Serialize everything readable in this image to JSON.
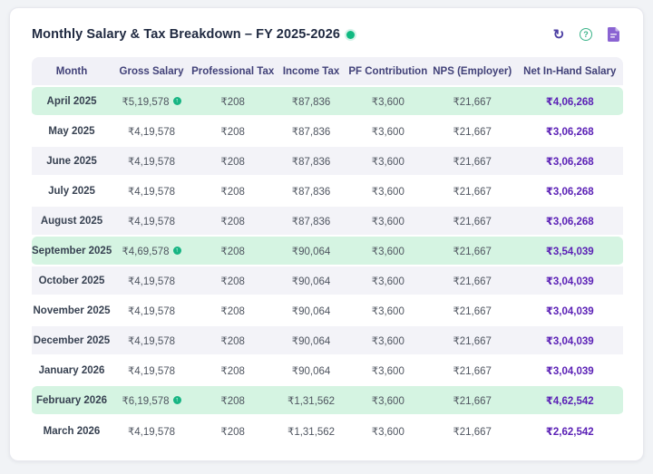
{
  "card": {
    "title": "Monthly Salary & Tax Breakdown – FY 2025-2026",
    "toolbar": {
      "refresh_glyph": "↻",
      "help_glyph": "?"
    }
  },
  "table": {
    "columns": [
      "Month",
      "Gross Salary",
      "Professional Tax",
      "Income Tax",
      "PF Contribution",
      "NPS (Employer)",
      "Net In-Hand Salary"
    ],
    "rows": [
      {
        "month": "April 2025",
        "gross": "₹5,19,578",
        "indicator": true,
        "professional_tax": "₹208",
        "income_tax": "₹87,836",
        "pf": "₹3,600",
        "nps": "₹21,667",
        "net": "₹4,06,268",
        "bg": "green"
      },
      {
        "month": "May 2025",
        "gross": "₹4,19,578",
        "indicator": false,
        "professional_tax": "₹208",
        "income_tax": "₹87,836",
        "pf": "₹3,600",
        "nps": "₹21,667",
        "net": "₹3,06,268",
        "bg": "white"
      },
      {
        "month": "June 2025",
        "gross": "₹4,19,578",
        "indicator": false,
        "professional_tax": "₹208",
        "income_tax": "₹87,836",
        "pf": "₹3,600",
        "nps": "₹21,667",
        "net": "₹3,06,268",
        "bg": "gray"
      },
      {
        "month": "July 2025",
        "gross": "₹4,19,578",
        "indicator": false,
        "professional_tax": "₹208",
        "income_tax": "₹87,836",
        "pf": "₹3,600",
        "nps": "₹21,667",
        "net": "₹3,06,268",
        "bg": "white"
      },
      {
        "month": "August 2025",
        "gross": "₹4,19,578",
        "indicator": false,
        "professional_tax": "₹208",
        "income_tax": "₹87,836",
        "pf": "₹3,600",
        "nps": "₹21,667",
        "net": "₹3,06,268",
        "bg": "gray"
      },
      {
        "month": "September 2025",
        "gross": "₹4,69,578",
        "indicator": true,
        "professional_tax": "₹208",
        "income_tax": "₹90,064",
        "pf": "₹3,600",
        "nps": "₹21,667",
        "net": "₹3,54,039",
        "bg": "green"
      },
      {
        "month": "October 2025",
        "gross": "₹4,19,578",
        "indicator": false,
        "professional_tax": "₹208",
        "income_tax": "₹90,064",
        "pf": "₹3,600",
        "nps": "₹21,667",
        "net": "₹3,04,039",
        "bg": "gray"
      },
      {
        "month": "November 2025",
        "gross": "₹4,19,578",
        "indicator": false,
        "professional_tax": "₹208",
        "income_tax": "₹90,064",
        "pf": "₹3,600",
        "nps": "₹21,667",
        "net": "₹3,04,039",
        "bg": "white"
      },
      {
        "month": "December 2025",
        "gross": "₹4,19,578",
        "indicator": false,
        "professional_tax": "₹208",
        "income_tax": "₹90,064",
        "pf": "₹3,600",
        "nps": "₹21,667",
        "net": "₹3,04,039",
        "bg": "gray"
      },
      {
        "month": "January 2026",
        "gross": "₹4,19,578",
        "indicator": false,
        "professional_tax": "₹208",
        "income_tax": "₹90,064",
        "pf": "₹3,600",
        "nps": "₹21,667",
        "net": "₹3,04,039",
        "bg": "white"
      },
      {
        "month": "February 2026",
        "gross": "₹6,19,578",
        "indicator": true,
        "professional_tax": "₹208",
        "income_tax": "₹1,31,562",
        "pf": "₹3,600",
        "nps": "₹21,667",
        "net": "₹4,62,542",
        "bg": "green"
      },
      {
        "month": "March 2026",
        "gross": "₹4,19,578",
        "indicator": false,
        "professional_tax": "₹208",
        "income_tax": "₹1,31,562",
        "pf": "₹3,600",
        "nps": "₹21,667",
        "net": "₹2,62,542",
        "bg": "white"
      }
    ]
  },
  "colors": {
    "highlight_row": "#d5f4e2",
    "stripe_row": "#f3f3f8",
    "net_text": "#5b21b6",
    "header_text": "#414178",
    "accent_green": "#10b981",
    "icon_purple": "#6d28d9"
  }
}
